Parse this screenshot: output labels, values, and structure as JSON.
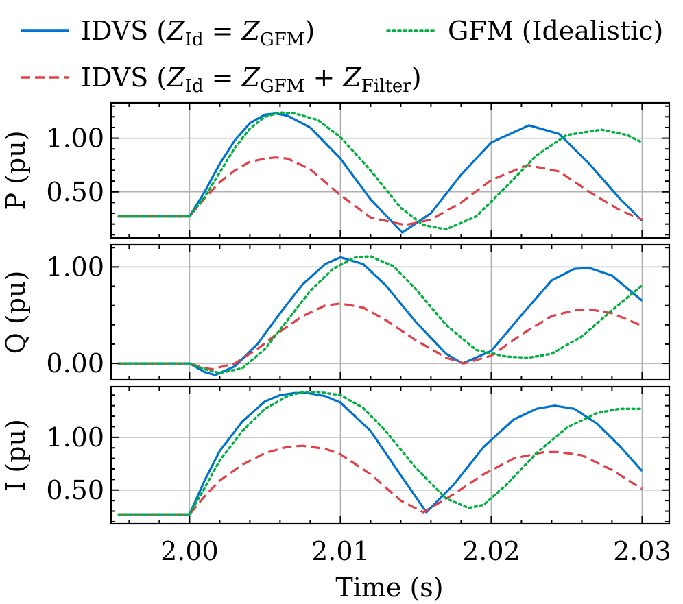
{
  "chart_data": {
    "type": "line",
    "xlabel": "Time (s)",
    "xlim": [
      1.9948,
      2.0318
    ],
    "xticks": [
      2.0,
      2.01,
      2.02,
      2.03
    ],
    "xtick_labels": [
      "2.00",
      "2.01",
      "2.02",
      "2.03"
    ],
    "grid": true,
    "legend_position": "top",
    "legend": [
      {
        "base": "IDVS (",
        "z1": "Z",
        "s1": "Id",
        "mid": " = ",
        "z2": "Z",
        "s2": "GFM",
        "plus": "",
        "z3": "",
        "s3": "",
        "close": ")",
        "color": "#0072cf",
        "dash": "solid"
      },
      {
        "base": "IDVS (",
        "z1": "Z",
        "s1": "Id",
        "mid": " = ",
        "z2": "Z",
        "s2": "GFM",
        "plus": " + ",
        "z3": "Z",
        "s3": "Filter",
        "close": ")",
        "color": "#e0404a",
        "dash": "dashed"
      },
      {
        "base": "GFM (Idealistic)",
        "color": "#00b140",
        "dash": "dotted"
      }
    ],
    "panels": [
      {
        "ylabel": "P (pu)",
        "ylim": [
          0.07,
          1.33
        ],
        "yticks": [
          0.5,
          1.0
        ],
        "ytick_labels": [
          "0.50",
          "1.00"
        ],
        "series": [
          {
            "color": "#0072cf",
            "dash": "solid",
            "x": [
              1.9953,
              2.0,
              2.001,
              2.002,
              2.003,
              2.004,
              2.005,
              2.0057,
              2.0065,
              2.008,
              2.01,
              2.012,
              2.0141,
              2.016,
              2.018,
              2.02,
              2.0225,
              2.0245,
              2.0265,
              2.0285,
              2.03
            ],
            "y": [
              0.27,
              0.27,
              0.5,
              0.76,
              0.98,
              1.14,
              1.22,
              1.23,
              1.21,
              1.1,
              0.81,
              0.43,
              0.12,
              0.3,
              0.66,
              0.96,
              1.12,
              1.04,
              0.76,
              0.44,
              0.23
            ]
          },
          {
            "color": "#e0404a",
            "dash": "dashed",
            "x": [
              1.9953,
              2.0,
              2.001,
              2.002,
              2.003,
              2.004,
              2.005,
              2.0057,
              2.0065,
              2.008,
              2.01,
              2.012,
              2.0143,
              2.016,
              2.018,
              2.02,
              2.0224,
              2.0245,
              2.0265,
              2.0285,
              2.03
            ],
            "y": [
              0.27,
              0.27,
              0.44,
              0.59,
              0.7,
              0.78,
              0.81,
              0.82,
              0.81,
              0.71,
              0.47,
              0.26,
              0.19,
              0.24,
              0.4,
              0.61,
              0.75,
              0.69,
              0.5,
              0.33,
              0.24
            ]
          },
          {
            "color": "#00b140",
            "dash": "dotted",
            "x": [
              1.9953,
              2.0,
              2.001,
              2.002,
              2.003,
              2.004,
              2.005,
              2.006,
              2.007,
              2.0085,
              2.01,
              2.012,
              2.014,
              2.0155,
              2.017,
              2.019,
              2.021,
              2.023,
              2.025,
              2.0273,
              2.029,
              2.03
            ],
            "y": [
              0.27,
              0.27,
              0.45,
              0.68,
              0.91,
              1.09,
              1.2,
              1.24,
              1.23,
              1.17,
              1.01,
              0.7,
              0.35,
              0.19,
              0.15,
              0.27,
              0.55,
              0.84,
              1.03,
              1.08,
              1.03,
              0.96
            ]
          }
        ]
      },
      {
        "ylabel": "Q (pu)",
        "ylim": [
          -0.17,
          1.23
        ],
        "yticks": [
          0.0,
          1.0
        ],
        "ytick_labels": [
          "0.00",
          "1.00"
        ],
        "series": [
          {
            "color": "#0072cf",
            "dash": "solid",
            "x": [
              1.9953,
              2.0,
              2.001,
              2.0017,
              2.003,
              2.0045,
              2.006,
              2.0075,
              2.009,
              2.01,
              2.0115,
              2.013,
              2.015,
              2.017,
              2.0181,
              2.02,
              2.022,
              2.024,
              2.0255,
              2.0265,
              2.028,
              2.03
            ],
            "y": [
              0.0,
              0.0,
              -0.09,
              -0.12,
              -0.03,
              0.2,
              0.52,
              0.82,
              1.03,
              1.1,
              1.03,
              0.81,
              0.43,
              0.1,
              0.0,
              0.13,
              0.5,
              0.86,
              0.98,
              0.99,
              0.91,
              0.65
            ]
          },
          {
            "color": "#e0404a",
            "dash": "dashed",
            "x": [
              1.9953,
              2.0,
              2.001,
              2.0015,
              2.003,
              2.0045,
              2.006,
              2.0075,
              2.009,
              2.01,
              2.0115,
              2.013,
              2.015,
              2.017,
              2.0182,
              2.02,
              2.022,
              2.024,
              2.0255,
              2.0265,
              2.028,
              2.03
            ],
            "y": [
              0.0,
              0.0,
              -0.05,
              -0.06,
              0.0,
              0.15,
              0.33,
              0.49,
              0.6,
              0.62,
              0.58,
              0.45,
              0.24,
              0.06,
              0.0,
              0.08,
              0.3,
              0.49,
              0.55,
              0.56,
              0.52,
              0.39
            ]
          },
          {
            "color": "#00b140",
            "dash": "dotted",
            "x": [
              1.9953,
              2.0,
              2.001,
              2.002,
              2.0035,
              2.005,
              2.0065,
              2.008,
              2.0095,
              2.011,
              2.012,
              2.0135,
              2.015,
              2.017,
              2.019,
              2.021,
              2.0225,
              2.024,
              2.026,
              2.028,
              2.03
            ],
            "y": [
              0.0,
              0.0,
              -0.06,
              -0.1,
              -0.05,
              0.15,
              0.45,
              0.75,
              0.98,
              1.1,
              1.11,
              1.01,
              0.77,
              0.4,
              0.14,
              0.07,
              0.06,
              0.1,
              0.28,
              0.55,
              0.81
            ]
          }
        ]
      },
      {
        "ylabel": "I (pu)",
        "ylim": [
          0.18,
          1.48
        ],
        "yticks": [
          0.5,
          1.0
        ],
        "ytick_labels": [
          "0.50",
          "1.00"
        ],
        "series": [
          {
            "color": "#0072cf",
            "dash": "solid",
            "x": [
              1.9953,
              2.0,
              2.001,
              2.002,
              2.0035,
              2.005,
              2.006,
              2.007,
              2.0078,
              2.009,
              2.01,
              2.012,
              2.014,
              2.0157,
              2.0175,
              2.0195,
              2.0215,
              2.023,
              2.0242,
              2.0255,
              2.027,
              2.0285,
              2.03
            ],
            "y": [
              0.27,
              0.27,
              0.59,
              0.87,
              1.15,
              1.34,
              1.4,
              1.42,
              1.42,
              1.39,
              1.33,
              1.06,
              0.64,
              0.29,
              0.55,
              0.91,
              1.17,
              1.27,
              1.3,
              1.27,
              1.13,
              0.92,
              0.68
            ]
          },
          {
            "color": "#e0404a",
            "dash": "dashed",
            "x": [
              1.9953,
              2.0,
              2.001,
              2.002,
              2.0035,
              2.005,
              2.0065,
              2.0075,
              2.009,
              2.01,
              2.012,
              2.014,
              2.0155,
              2.0175,
              2.0195,
              2.0215,
              2.0235,
              2.0245,
              2.026,
              2.028,
              2.03
            ],
            "y": [
              0.27,
              0.27,
              0.44,
              0.59,
              0.74,
              0.85,
              0.91,
              0.92,
              0.89,
              0.84,
              0.65,
              0.4,
              0.29,
              0.46,
              0.65,
              0.8,
              0.86,
              0.86,
              0.83,
              0.69,
              0.51
            ]
          },
          {
            "color": "#00b140",
            "dash": "dotted",
            "x": [
              1.9953,
              2.0,
              2.001,
              2.002,
              2.0035,
              2.005,
              2.0065,
              2.0075,
              2.0085,
              2.01,
              2.0115,
              2.013,
              2.015,
              2.017,
              2.0185,
              2.0195,
              2.021,
              2.023,
              2.025,
              2.027,
              2.0285,
              2.03
            ],
            "y": [
              0.27,
              0.27,
              0.52,
              0.78,
              1.06,
              1.27,
              1.39,
              1.43,
              1.43,
              1.4,
              1.28,
              1.06,
              0.71,
              0.42,
              0.33,
              0.36,
              0.55,
              0.85,
              1.09,
              1.23,
              1.27,
              1.27
            ]
          }
        ]
      }
    ]
  }
}
